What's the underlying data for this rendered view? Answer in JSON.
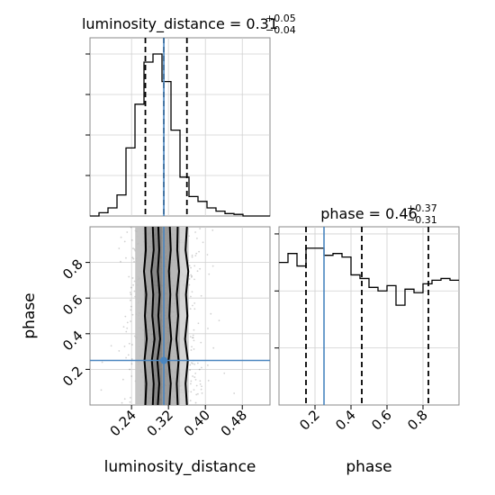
{
  "chart_data": [
    {
      "type": "histogram",
      "panel": "luminosity_distance marginal",
      "title_param": "luminosity_distance = 0.31",
      "title_sup": "+0.05",
      "title_sub": "−0.04",
      "xlim": [
        0.15,
        0.54
      ],
      "bin_edges": [
        0.15,
        0.1695,
        0.189,
        0.2085,
        0.228,
        0.2475,
        0.267,
        0.2865,
        0.306,
        0.3255,
        0.345,
        0.3645,
        0.384,
        0.4035,
        0.423,
        0.4425,
        0.462,
        0.4815,
        0.501,
        0.5205,
        0.54
      ],
      "counts": [
        0.0,
        0.02,
        0.05,
        0.13,
        0.42,
        0.69,
        0.95,
        1.0,
        0.83,
        0.53,
        0.24,
        0.12,
        0.09,
        0.05,
        0.03,
        0.015,
        0.01,
        0.0,
        0.0,
        0.0
      ],
      "quantiles": [
        0.27,
        0.31,
        0.36
      ],
      "truth": 0.31,
      "grid": true
    },
    {
      "type": "histogram",
      "panel": "phase marginal",
      "title_param": "phase = 0.46",
      "title_sup": "+0.37",
      "title_sub": "−0.31",
      "xlim": [
        0.0,
        1.0
      ],
      "bin_edges": [
        0.0,
        0.05,
        0.1,
        0.15,
        0.2,
        0.25,
        0.3,
        0.35,
        0.4,
        0.45,
        0.5,
        0.55,
        0.6,
        0.65,
        0.7,
        0.75,
        0.8,
        0.85,
        0.9,
        0.95,
        1.0
      ],
      "counts": [
        0.8,
        0.85,
        0.78,
        0.88,
        0.88,
        0.84,
        0.85,
        0.83,
        0.73,
        0.71,
        0.66,
        0.64,
        0.67,
        0.56,
        0.65,
        0.63,
        0.68,
        0.7,
        0.71,
        0.7
      ],
      "quantiles": [
        0.15,
        0.46,
        0.83
      ],
      "truth": 0.25,
      "xticks": [
        "0.2",
        "0.4",
        "0.6",
        "0.8"
      ],
      "xtick_values": [
        0.2,
        0.4,
        0.6,
        0.8
      ],
      "xlabel": "phase",
      "grid": true
    },
    {
      "type": "2d-density",
      "panel": "luminosity_distance vs phase",
      "xlim": [
        0.15,
        0.54
      ],
      "ylim": [
        0.0,
        1.0
      ],
      "xticks": [
        "0.24",
        "0.32",
        "0.40",
        "0.48"
      ],
      "xtick_values": [
        0.24,
        0.32,
        0.4,
        0.48
      ],
      "yticks": [
        "0.2",
        "0.4",
        "0.6",
        "0.8"
      ],
      "ytick_values": [
        0.2,
        0.4,
        0.6,
        0.8
      ],
      "xlabel": "luminosity_distance",
      "ylabel": "phase",
      "truth": [
        0.31,
        0.25
      ],
      "density_columns": [
        {
          "x0": 0.248,
          "x1": 0.267,
          "level": 0.3
        },
        {
          "x0": 0.267,
          "x1": 0.286,
          "level": 0.55
        },
        {
          "x0": 0.286,
          "x1": 0.306,
          "level": 0.75
        },
        {
          "x0": 0.306,
          "x1": 0.325,
          "level": 0.62
        },
        {
          "x0": 0.325,
          "x1": 0.345,
          "level": 0.4
        },
        {
          "x0": 0.345,
          "x1": 0.364,
          "level": 0.18
        }
      ],
      "contours_x": [
        [
          0.27,
          0.272,
          0.268,
          0.273,
          0.269,
          0.272,
          0.267,
          0.271,
          0.27
        ],
        [
          0.286,
          0.288,
          0.284,
          0.29,
          0.285,
          0.287,
          0.283,
          0.288,
          0.286
        ],
        [
          0.297,
          0.3,
          0.296,
          0.302,
          0.298,
          0.301,
          0.297,
          0.3,
          0.298
        ],
        [
          0.322,
          0.325,
          0.32,
          0.326,
          0.322,
          0.324,
          0.321,
          0.325,
          0.323
        ],
        [
          0.34,
          0.338,
          0.342,
          0.337,
          0.341,
          0.338,
          0.343,
          0.339,
          0.34
        ],
        [
          0.36,
          0.357,
          0.362,
          0.356,
          0.361,
          0.358,
          0.363,
          0.357,
          0.36
        ]
      ],
      "contour_y": [
        0.0,
        0.12,
        0.25,
        0.37,
        0.5,
        0.62,
        0.75,
        0.87,
        1.0
      ]
    }
  ]
}
